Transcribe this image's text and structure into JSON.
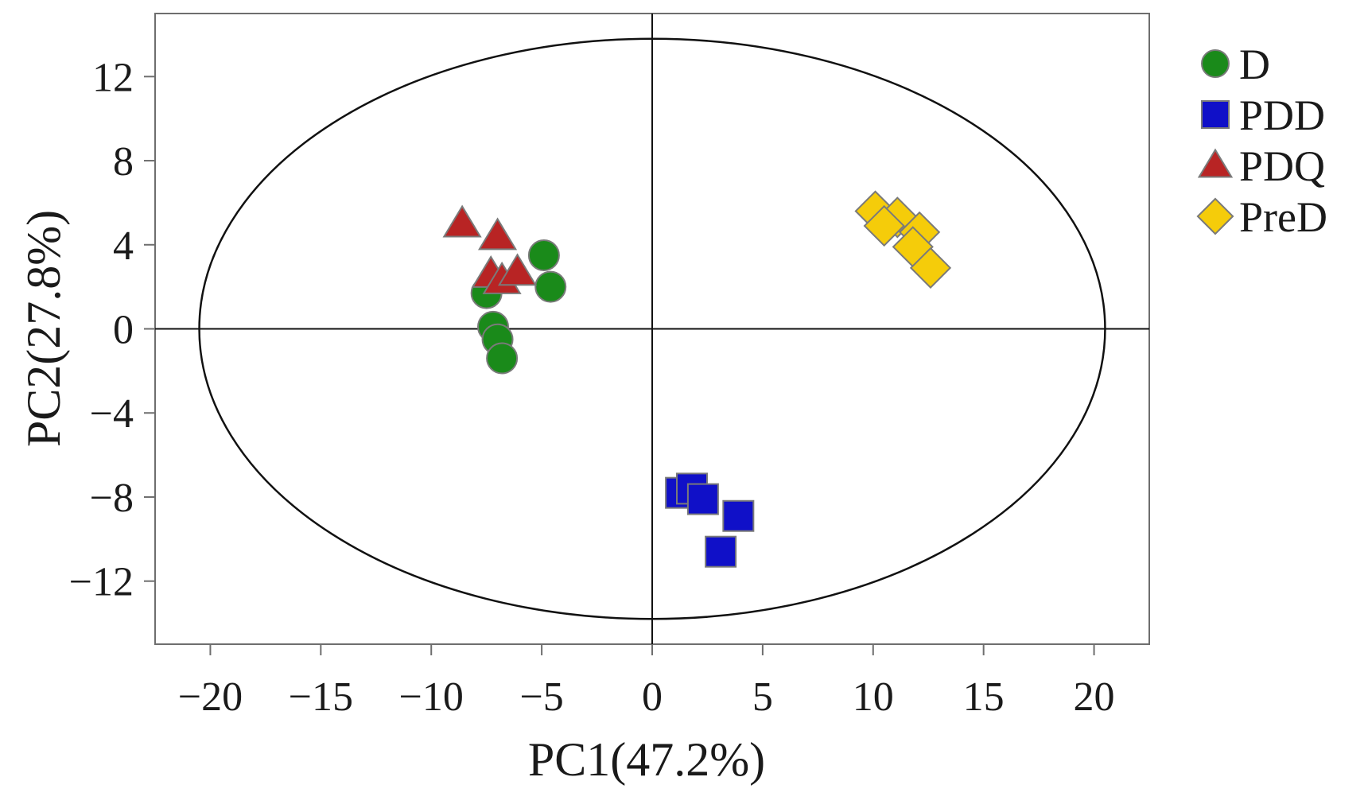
{
  "chart_data": {
    "type": "scatter",
    "xlabel": "PC1(47.2%)",
    "ylabel": "PC2(27.8%)",
    "xlim": [
      -22.5,
      22.5
    ],
    "ylim": [
      -15,
      15
    ],
    "x_ticks": [
      -20,
      -15,
      -10,
      -5,
      0,
      5,
      10,
      15,
      20
    ],
    "y_ticks": [
      -12,
      -8,
      -4,
      0,
      4,
      8,
      12
    ],
    "x_tick_labels": [
      "−20",
      "−15",
      "−10",
      "−5",
      "0",
      "5",
      "10",
      "15",
      "20"
    ],
    "y_tick_labels": [
      "−12",
      "−8",
      "−4",
      "0",
      "4",
      "8",
      "12"
    ],
    "reference_lines": {
      "x": 0,
      "y": 0
    },
    "confidence_ellipse": {
      "center": [
        0,
        0
      ],
      "x_radius": 20.5,
      "y_radius": 13.8
    },
    "grid": false,
    "legend_position": "right",
    "series": [
      {
        "name": "D",
        "marker": "circle",
        "color": "#1a8a1a",
        "points": [
          [
            -4.9,
            3.5
          ],
          [
            -4.6,
            2.0
          ],
          [
            -7.5,
            1.7
          ],
          [
            -7.2,
            0.1
          ],
          [
            -7.0,
            -0.5
          ],
          [
            -6.8,
            -1.4
          ]
        ]
      },
      {
        "name": "PDD",
        "marker": "square",
        "color": "#1010c8",
        "points": [
          [
            1.3,
            -7.8
          ],
          [
            1.8,
            -7.6
          ],
          [
            2.3,
            -8.1
          ],
          [
            3.9,
            -8.9
          ],
          [
            3.1,
            -10.6
          ]
        ]
      },
      {
        "name": "PDQ",
        "marker": "triangle",
        "color": "#b82424",
        "points": [
          [
            -8.6,
            5.0
          ],
          [
            -7.0,
            4.4
          ],
          [
            -7.3,
            2.6
          ],
          [
            -6.8,
            2.3
          ],
          [
            -6.1,
            2.7
          ]
        ]
      },
      {
        "name": "PreD",
        "marker": "diamond",
        "color": "#f5cc0a",
        "points": [
          [
            10.1,
            5.6
          ],
          [
            11.1,
            5.3
          ],
          [
            12.1,
            4.6
          ],
          [
            10.5,
            4.9
          ],
          [
            11.8,
            3.9
          ],
          [
            12.6,
            2.9
          ]
        ]
      }
    ]
  }
}
